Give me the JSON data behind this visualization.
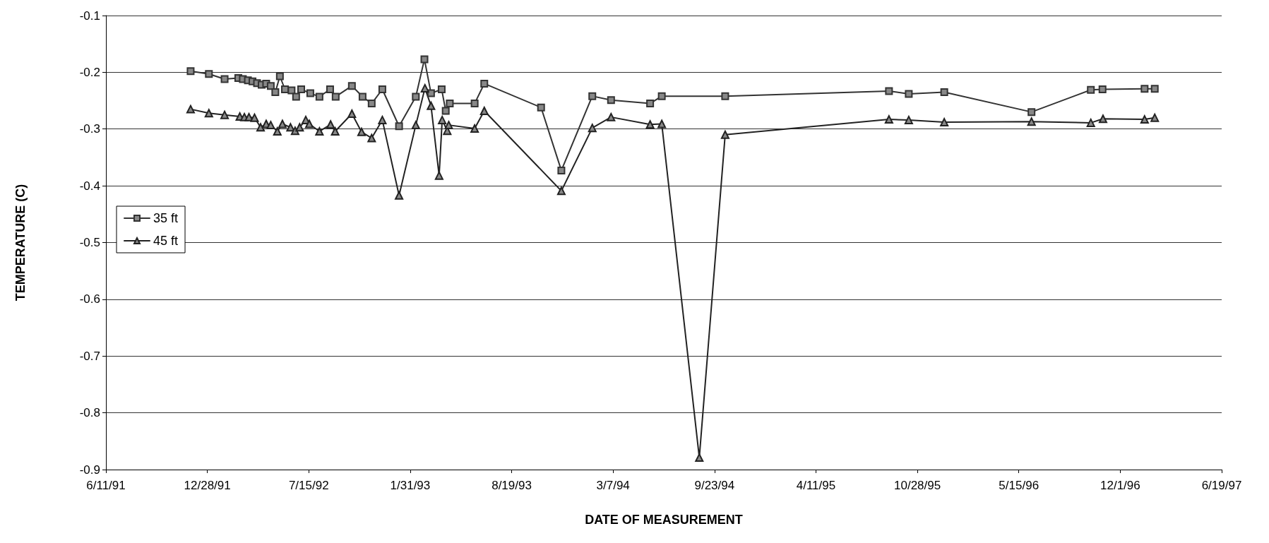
{
  "chart_data": {
    "type": "line",
    "xlabel": "DATE OF MEASUREMENT",
    "ylabel": "TEMPERATURE (C)",
    "xlim": [
      "1991-06-11",
      "1997-06-19"
    ],
    "xticks": [
      {
        "value": "1991-06-11",
        "label": "6/11/91"
      },
      {
        "value": "1991-12-28",
        "label": "12/28/91"
      },
      {
        "value": "1992-07-15",
        "label": "7/15/92"
      },
      {
        "value": "1993-01-31",
        "label": "1/31/93"
      },
      {
        "value": "1993-08-19",
        "label": "8/19/93"
      },
      {
        "value": "1994-03-07",
        "label": "3/7/94"
      },
      {
        "value": "1994-09-23",
        "label": "9/23/94"
      },
      {
        "value": "1995-04-11",
        "label": "4/11/95"
      },
      {
        "value": "1995-10-28",
        "label": "10/28/95"
      },
      {
        "value": "1996-05-15",
        "label": "5/15/96"
      },
      {
        "value": "1996-12-01",
        "label": "12/1/96"
      },
      {
        "value": "1997-06-19",
        "label": "6/19/97"
      }
    ],
    "ylim": [
      -0.9,
      -0.1
    ],
    "yticks": [
      -0.9,
      -0.8,
      -0.7,
      -0.6,
      -0.5,
      -0.4,
      -0.3,
      -0.2,
      -0.1
    ],
    "grid": "y",
    "legend": "left",
    "line_style": "solid",
    "series": [
      {
        "name": "35 ft",
        "color": "#333333",
        "marker": "square",
        "x": [
          "1991-11-25",
          "1991-12-31",
          "1992-01-31",
          "1992-02-27",
          "1992-03-07",
          "1992-03-17",
          "1992-03-26",
          "1992-04-04",
          "1992-04-13",
          "1992-04-22",
          "1992-05-01",
          "1992-05-10",
          "1992-05-19",
          "1992-05-29",
          "1992-06-11",
          "1992-06-20",
          "1992-06-30",
          "1992-07-18",
          "1992-08-05",
          "1992-08-26",
          "1992-09-06",
          "1992-10-08",
          "1992-10-29",
          "1992-11-16",
          "1992-12-07",
          "1993-01-09",
          "1993-02-11",
          "1993-02-28",
          "1993-03-13",
          "1993-04-03",
          "1993-04-11",
          "1993-04-19",
          "1993-06-07",
          "1993-06-26",
          "1993-10-16",
          "1993-11-25",
          "1994-01-25",
          "1994-03-03",
          "1994-05-19",
          "1994-06-11",
          "1994-10-14",
          "1995-09-02",
          "1995-10-11",
          "1995-12-20",
          "1996-06-09",
          "1996-10-04",
          "1996-10-27",
          "1997-01-18",
          "1997-02-07"
        ],
        "values": [
          -0.198,
          -0.203,
          -0.212,
          -0.21,
          -0.212,
          -0.214,
          -0.216,
          -0.219,
          -0.222,
          -0.22,
          -0.224,
          -0.235,
          -0.207,
          -0.23,
          -0.232,
          -0.243,
          -0.23,
          -0.237,
          -0.243,
          -0.23,
          -0.243,
          -0.224,
          -0.243,
          -0.255,
          -0.23,
          -0.295,
          -0.243,
          -0.177,
          -0.237,
          -0.23,
          -0.268,
          -0.255,
          -0.255,
          -0.22,
          -0.262,
          -0.373,
          -0.242,
          -0.249,
          -0.255,
          -0.242,
          -0.242,
          -0.233,
          -0.238,
          -0.235,
          -0.27,
          -0.231,
          -0.23,
          -0.229,
          -0.229
        ]
      },
      {
        "name": "45 ft",
        "color": "#222222",
        "marker": "triangle",
        "x": [
          "1991-11-25",
          "1991-12-31",
          "1992-01-31",
          "1992-03-01",
          "1992-03-10",
          "1992-03-19",
          "1992-03-30",
          "1992-04-11",
          "1992-04-22",
          "1992-05-01",
          "1992-05-14",
          "1992-05-24",
          "1992-06-09",
          "1992-06-18",
          "1992-06-27",
          "1992-07-09",
          "1992-07-16",
          "1992-08-05",
          "1992-08-27",
          "1992-09-05",
          "1992-10-08",
          "1992-10-27",
          "1992-11-16",
          "1992-12-07",
          "1993-01-09",
          "1993-02-11",
          "1993-03-01",
          "1993-03-13",
          "1993-03-29",
          "1993-04-04",
          "1993-04-14",
          "1993-04-17",
          "1993-06-07",
          "1993-06-26",
          "1993-11-25",
          "1994-01-25",
          "1994-03-03",
          "1994-05-19",
          "1994-06-11",
          "1994-08-24",
          "1994-10-14",
          "1995-09-02",
          "1995-10-11",
          "1995-12-20",
          "1996-06-09",
          "1996-10-04",
          "1996-10-28",
          "1997-01-18",
          "1997-02-07"
        ],
        "values": [
          -0.265,
          -0.272,
          -0.275,
          -0.278,
          -0.279,
          -0.279,
          -0.28,
          -0.297,
          -0.291,
          -0.293,
          -0.304,
          -0.291,
          -0.297,
          -0.303,
          -0.297,
          -0.284,
          -0.291,
          -0.304,
          -0.292,
          -0.304,
          -0.273,
          -0.305,
          -0.316,
          -0.284,
          -0.417,
          -0.293,
          -0.228,
          -0.259,
          -0.382,
          -0.284,
          -0.303,
          -0.293,
          -0.299,
          -0.268,
          -0.409,
          -0.298,
          -0.279,
          -0.292,
          -0.291,
          -0.879,
          -0.31,
          -0.283,
          -0.284,
          -0.288,
          -0.287,
          -0.289,
          -0.282,
          -0.283,
          -0.28
        ]
      }
    ]
  }
}
